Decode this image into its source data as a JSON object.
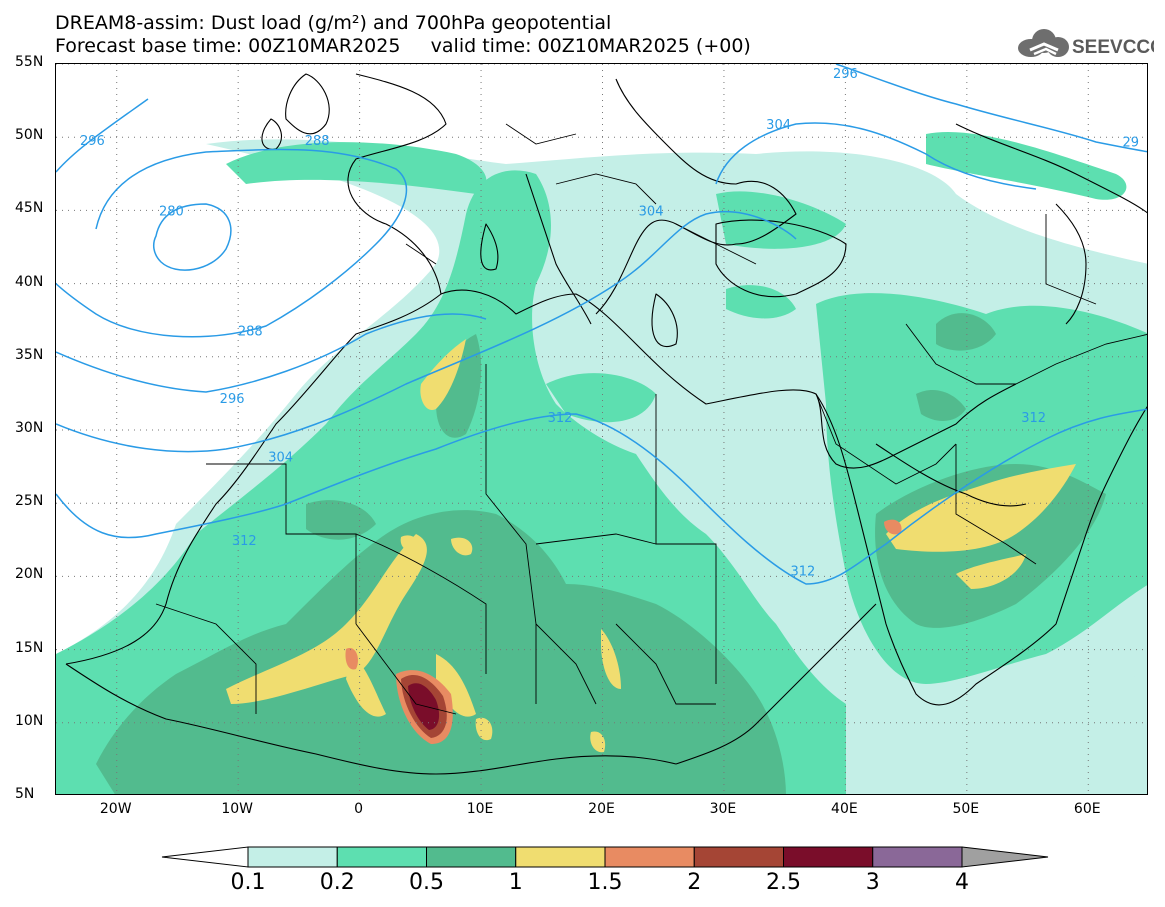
{
  "title": {
    "line1": "DREAM8-assim: Dust load (g/m²) and 700hPa geopotential",
    "line2": "Forecast base time: 00Z10MAR2025     valid time: 00Z10MAR2025 (+00)"
  },
  "logo": {
    "text": "SEEVCCC",
    "icon": "cloud-icon"
  },
  "axes": {
    "lon_range": [
      -25,
      65
    ],
    "lat_range": [
      5,
      55
    ],
    "x_ticks": [
      {
        "value": -20,
        "label": "20W"
      },
      {
        "value": -10,
        "label": "10W"
      },
      {
        "value": 0,
        "label": "0"
      },
      {
        "value": 10,
        "label": "10E"
      },
      {
        "value": 20,
        "label": "20E"
      },
      {
        "value": 30,
        "label": "30E"
      },
      {
        "value": 40,
        "label": "40E"
      },
      {
        "value": 50,
        "label": "50E"
      },
      {
        "value": 60,
        "label": "60E"
      }
    ],
    "y_ticks": [
      {
        "value": 55,
        "label": "55N"
      },
      {
        "value": 50,
        "label": "50N"
      },
      {
        "value": 45,
        "label": "45N"
      },
      {
        "value": 40,
        "label": "40N"
      },
      {
        "value": 35,
        "label": "35N"
      },
      {
        "value": 30,
        "label": "30N"
      },
      {
        "value": 25,
        "label": "25N"
      },
      {
        "value": 20,
        "label": "20N"
      },
      {
        "value": 15,
        "label": "15N"
      },
      {
        "value": 10,
        "label": "10N"
      },
      {
        "value": 5,
        "label": "5N"
      }
    ],
    "grid": "dotted"
  },
  "colorbar": {
    "labels": [
      "0.1",
      "0.2",
      "0.5",
      "1",
      "1.5",
      "2",
      "2.5",
      "3",
      "4"
    ],
    "colors": [
      "#ffffff",
      "#c4efe7",
      "#5ddfb0",
      "#52bb8e",
      "#f0dd70",
      "#e88b62",
      "#a54535",
      "#7a0d2a",
      "#8a6898",
      "#a0a0a0"
    ]
  },
  "contour_labels": [
    {
      "text": "296",
      "lon": -22,
      "lat": 49.8
    },
    {
      "text": "288",
      "lon": -3.5,
      "lat": 49.8
    },
    {
      "text": "280",
      "lon": -15.5,
      "lat": 45
    },
    {
      "text": "288",
      "lon": -9,
      "lat": 36.8
    },
    {
      "text": "296",
      "lon": -10.5,
      "lat": 32.2
    },
    {
      "text": "304",
      "lon": -6.5,
      "lat": 28.2
    },
    {
      "text": "312",
      "lon": -9.5,
      "lat": 22.5
    },
    {
      "text": "312",
      "lon": 16.5,
      "lat": 30.9
    },
    {
      "text": "312",
      "lon": 36.5,
      "lat": 20.4
    },
    {
      "text": "312",
      "lon": 55.5,
      "lat": 30.9
    },
    {
      "text": "304",
      "lon": 24,
      "lat": 45
    },
    {
      "text": "304",
      "lon": 34.5,
      "lat": 50.9
    },
    {
      "text": "296",
      "lon": 40,
      "lat": 54.4
    },
    {
      "text": "29",
      "lon": 63.5,
      "lat": 49.7
    }
  ]
}
